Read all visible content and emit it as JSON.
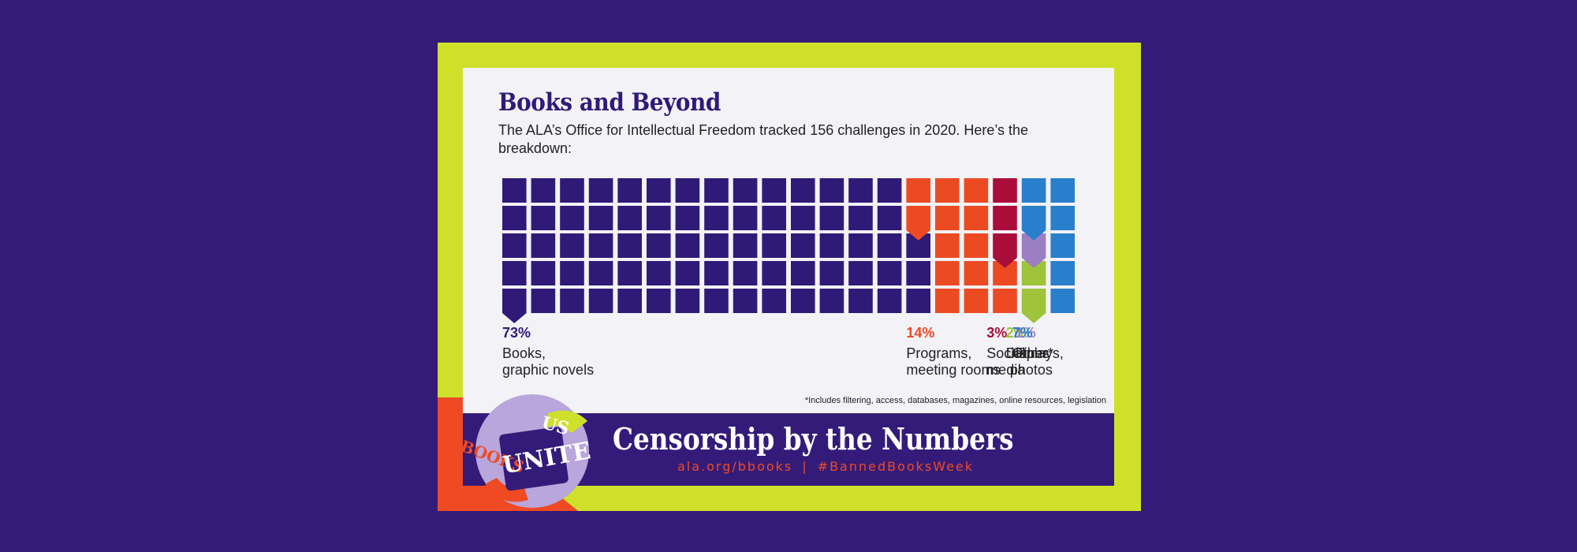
{
  "title": "Books and Beyond",
  "intro": "The ALA’s Office for Intellectual Freedom tracked 156 challenges in 2020. Here’s the breakdown:",
  "chart_data": {
    "type": "waffle",
    "title": "Books and Beyond",
    "total_challenges": 156,
    "year": 2020,
    "grid": {
      "columns": 20,
      "rows": 5
    },
    "categories": [
      {
        "name": "Books, graphic novels",
        "label_lines": [
          "Books,",
          "graphic novels"
        ],
        "pct_label": "73%",
        "value": 73,
        "color": "#2f1a78"
      },
      {
        "name": "Programs, meeting rooms",
        "label_lines": [
          "Programs,",
          "meeting rooms"
        ],
        "pct_label": "14%",
        "value": 14,
        "color": "#ec4a22"
      },
      {
        "name": "Social media",
        "label_lines": [
          "Social",
          "media"
        ],
        "pct_label": "3%",
        "value": 3,
        "color": "#ab0d3a"
      },
      {
        "name": "Displays, photos",
        "label_lines": [
          "Displays,",
          " photos"
        ],
        "pct_label": "2%",
        "value": 2,
        "color": "#9fc33b"
      },
      {
        "name": "Films",
        "label_lines": [
          "Films"
        ],
        "pct_label": "1%",
        "value": 1,
        "color": "#9b7fc2"
      },
      {
        "name": "Other*",
        "label_lines": [
          "Other*"
        ],
        "pct_label": "7%",
        "value": 7,
        "color": "#2a7fcc"
      }
    ]
  },
  "footnote": "*Includes filtering, access, databases, magazines, online resources, legislation",
  "banner": {
    "title": "Censorship by the Numbers",
    "url": "ala.org/bbooks",
    "separator": "|",
    "hashtag": "#BannedBooksWeek"
  },
  "logo": {
    "words": [
      "BOOKS",
      "UNITE",
      "US"
    ],
    "bg": "#b9a6dc",
    "accent": "#ef4a24"
  }
}
